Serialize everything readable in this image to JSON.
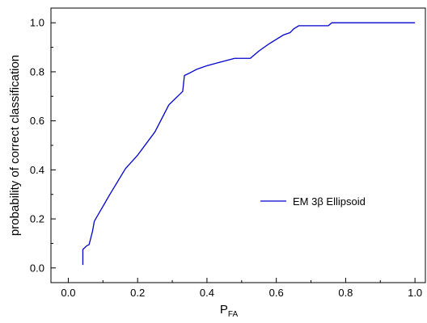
{
  "chart_data": {
    "type": "line",
    "title": "",
    "xlabel_main": "P",
    "xlabel_sub": "FA",
    "ylabel": "probability of correct classification",
    "xlim": [
      -0.05,
      1.03
    ],
    "ylim": [
      -0.06,
      1.06
    ],
    "x_ticks": [
      0.0,
      0.2,
      0.4,
      0.6,
      0.8,
      1.0
    ],
    "x_tick_labels": [
      "0.0",
      "0.2",
      "0.4",
      "0.6",
      "0.8",
      "1.0"
    ],
    "y_ticks": [
      0.0,
      0.2,
      0.4,
      0.6,
      0.8,
      1.0
    ],
    "y_tick_labels": [
      "0.0",
      "0.2",
      "0.4",
      "0.6",
      "0.8",
      "1.0"
    ],
    "grid": false,
    "legend_position": "center-right",
    "series": [
      {
        "name": "EM 3β Ellipsoid",
        "color": "#0000cc",
        "x": [
          0.042,
          0.042,
          0.053,
          0.06,
          0.07,
          0.075,
          0.12,
          0.165,
          0.2,
          0.25,
          0.29,
          0.33,
          0.335,
          0.35,
          0.37,
          0.4,
          0.44,
          0.48,
          0.49,
          0.525,
          0.55,
          0.58,
          0.62,
          0.64,
          0.65,
          0.665,
          0.75,
          0.76,
          0.8,
          0.9,
          1.0
        ],
        "y": [
          0.012,
          0.075,
          0.09,
          0.095,
          0.15,
          0.19,
          0.3,
          0.405,
          0.46,
          0.555,
          0.665,
          0.72,
          0.785,
          0.795,
          0.81,
          0.825,
          0.84,
          0.855,
          0.855,
          0.855,
          0.885,
          0.915,
          0.95,
          0.96,
          0.975,
          0.988,
          0.988,
          1.0,
          1.0,
          1.0,
          1.0
        ]
      }
    ]
  }
}
